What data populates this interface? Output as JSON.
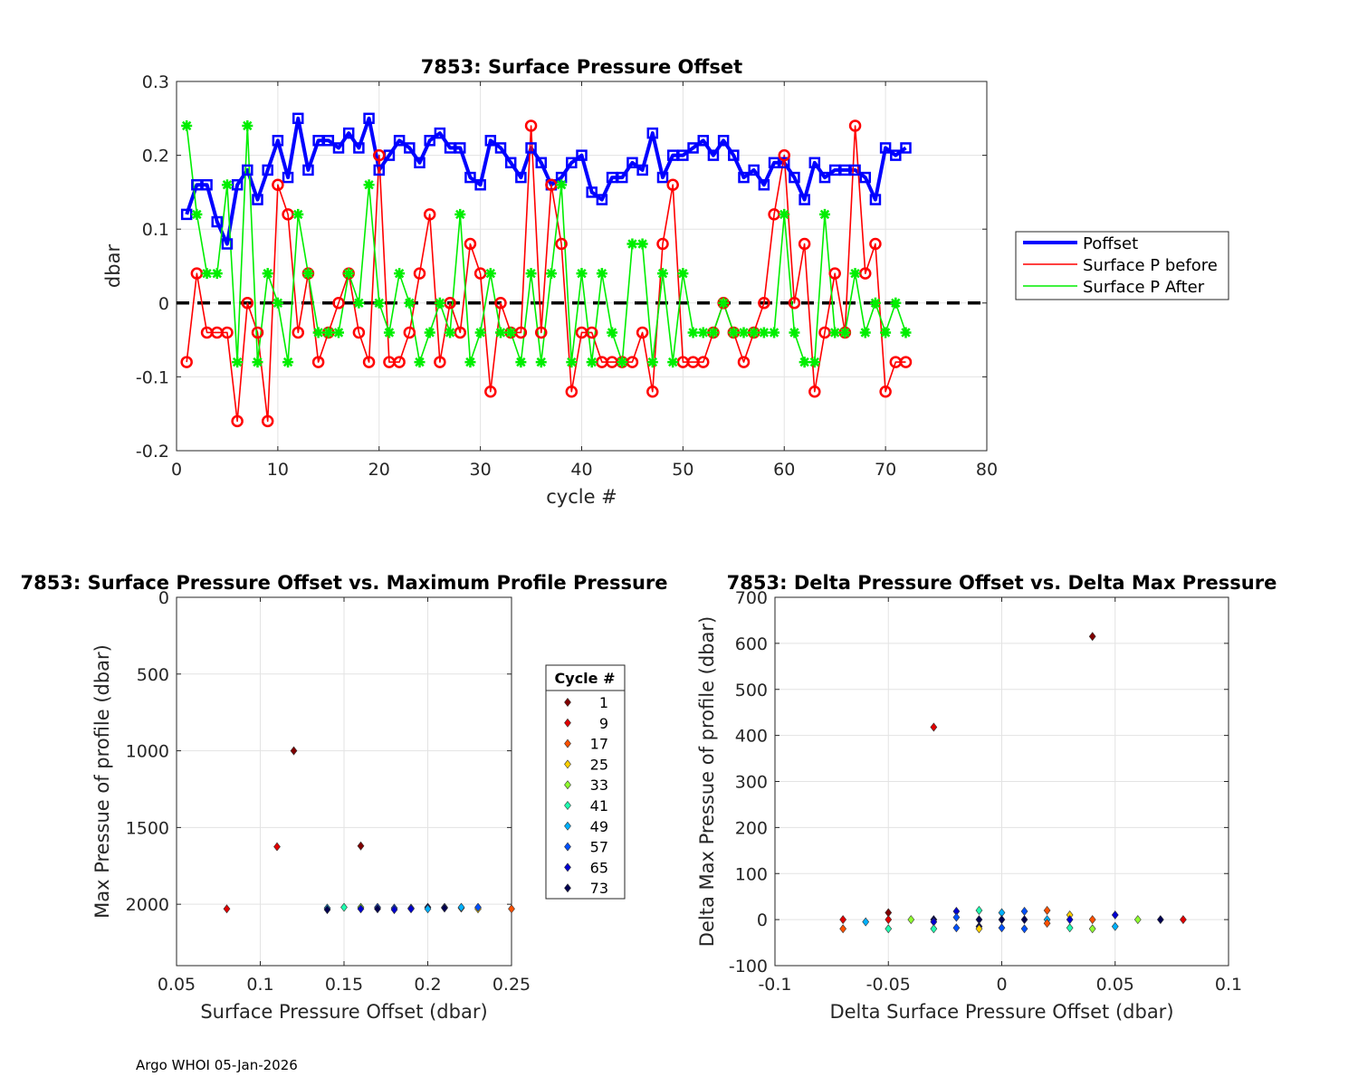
{
  "footer": "Argo WHOI 05-Jan-2026",
  "chart_data": [
    {
      "type": "line",
      "title": "7853: Surface Pressure Offset",
      "xlabel": "cycle #",
      "ylabel": "dbar",
      "xlim": [
        0,
        80
      ],
      "ylim": [
        -0.2,
        0.3
      ],
      "xticks": [
        0,
        10,
        20,
        30,
        40,
        50,
        60,
        70,
        80
      ],
      "yticks": [
        -0.2,
        -0.1,
        0,
        0.1,
        0.2,
        0.3
      ],
      "xtick_labels": [
        "0",
        "10",
        "20",
        "30",
        "40",
        "50",
        "60",
        "70",
        "80"
      ],
      "ytick_labels": [
        "-0.2",
        "-0.1",
        "0",
        "0.1",
        "0.2",
        "0.3"
      ],
      "grid": true,
      "legend_position": "outside-right",
      "reference_line": {
        "y": 0,
        "style": "black dashed"
      },
      "x": [
        1,
        2,
        3,
        4,
        5,
        6,
        7,
        8,
        9,
        10,
        11,
        12,
        13,
        14,
        15,
        16,
        17,
        18,
        19,
        20,
        21,
        22,
        23,
        24,
        25,
        26,
        27,
        28,
        29,
        30,
        31,
        32,
        33,
        34,
        35,
        36,
        37,
        38,
        39,
        40,
        41,
        42,
        43,
        44,
        45,
        46,
        47,
        48,
        49,
        50,
        51,
        52,
        53,
        54,
        55,
        56,
        57,
        58,
        59,
        60,
        61,
        62,
        63,
        64,
        65,
        66,
        67,
        68,
        69,
        70,
        71,
        72
      ],
      "series": [
        {
          "name": "Poffset",
          "color": "#0000ff",
          "values": [
            0.12,
            0.16,
            0.16,
            0.11,
            0.08,
            0.16,
            0.18,
            0.14,
            0.18,
            0.22,
            0.17,
            0.25,
            0.18,
            0.22,
            0.22,
            0.21,
            0.23,
            0.21,
            0.25,
            0.18,
            0.2,
            0.22,
            0.21,
            0.19,
            0.22,
            0.23,
            0.21,
            0.21,
            0.17,
            0.16,
            0.22,
            0.21,
            0.19,
            0.17,
            0.21,
            0.19,
            0.16,
            0.17,
            0.19,
            0.2,
            0.15,
            0.14,
            0.17,
            0.17,
            0.19,
            0.18,
            0.23,
            0.17,
            0.2,
            0.2,
            0.21,
            0.22,
            0.2,
            0.22,
            0.2,
            0.17,
            0.18,
            0.16,
            0.19,
            0.19,
            0.17,
            0.14,
            0.19,
            0.17,
            0.18,
            0.18,
            0.18,
            0.17,
            0.14,
            0.21,
            0.2,
            0.21
          ]
        },
        {
          "name": "Surface P before",
          "color": "#ff0000",
          "values": [
            -0.08,
            0.04,
            -0.04,
            -0.04,
            -0.04,
            -0.16,
            0.0,
            -0.04,
            -0.16,
            0.16,
            0.12,
            -0.04,
            0.04,
            -0.08,
            -0.04,
            0.0,
            0.04,
            -0.04,
            -0.08,
            0.2,
            -0.08,
            -0.08,
            -0.04,
            0.04,
            0.12,
            -0.08,
            0.0,
            -0.04,
            0.08,
            0.04,
            -0.12,
            0.0,
            -0.04,
            -0.04,
            0.24,
            -0.04,
            0.16,
            0.08,
            -0.12,
            -0.04,
            -0.04,
            -0.08,
            -0.08,
            -0.08,
            -0.08,
            -0.04,
            -0.12,
            0.08,
            0.16,
            -0.08,
            -0.08,
            -0.08,
            -0.04,
            0.0,
            -0.04,
            -0.08,
            -0.04,
            0.0,
            0.12,
            0.2,
            0.0,
            0.08,
            -0.12,
            -0.04,
            0.04,
            -0.04,
            0.24,
            0.04,
            0.08,
            -0.12,
            -0.08,
            -0.08
          ]
        },
        {
          "name": "Surface P After",
          "color": "#00ee00",
          "values": [
            0.24,
            0.12,
            0.04,
            0.04,
            0.16,
            -0.08,
            0.24,
            -0.08,
            0.04,
            0.0,
            -0.08,
            0.12,
            0.04,
            -0.04,
            -0.04,
            -0.04,
            0.04,
            0.0,
            0.16,
            0.0,
            -0.04,
            0.04,
            0.0,
            -0.08,
            -0.04,
            0.0,
            -0.04,
            0.12,
            -0.08,
            -0.04,
            0.04,
            -0.04,
            -0.04,
            -0.08,
            0.04,
            -0.08,
            0.04,
            0.16,
            -0.08,
            0.04,
            -0.08,
            0.04,
            -0.04,
            -0.08,
            0.08,
            0.08,
            -0.08,
            0.04,
            -0.08,
            0.04,
            -0.04,
            -0.04,
            -0.04,
            0.0,
            -0.04,
            -0.04,
            -0.04,
            -0.04,
            -0.04,
            0.12,
            -0.04,
            -0.08,
            -0.08,
            0.12,
            -0.04,
            -0.04,
            0.04,
            -0.04,
            0.0,
            -0.04,
            0.0,
            -0.04
          ]
        }
      ]
    },
    {
      "type": "scatter",
      "title": "7853: Surface Pressure Offset vs. Maximum Profile Pressure",
      "xlabel": "Surface Pressure Offset (dbar)",
      "ylabel": "Max Pressue of profile (dbar)",
      "xlim": [
        0.05,
        0.25
      ],
      "ylim": [
        0,
        2400
      ],
      "y_reversed": true,
      "xticks": [
        0.05,
        0.1,
        0.15,
        0.2,
        0.25
      ],
      "yticks": [
        0,
        500,
        1000,
        1500,
        2000
      ],
      "xtick_labels": [
        "0.05",
        "0.1",
        "0.15",
        "0.2",
        "0.25"
      ],
      "ytick_labels": [
        "0",
        "500",
        "1000",
        "1500",
        "2000"
      ],
      "grid": true,
      "legend_title": "Cycle #",
      "legend": [
        {
          "label": "1",
          "color": "#800000"
        },
        {
          "label": "9",
          "color": "#e00000"
        },
        {
          "label": "17",
          "color": "#ff5000"
        },
        {
          "label": "25",
          "color": "#ffd000"
        },
        {
          "label": "33",
          "color": "#90ff30"
        },
        {
          "label": "41",
          "color": "#20ffb0"
        },
        {
          "label": "49",
          "color": "#00b0ff"
        },
        {
          "label": "57",
          "color": "#0050ff"
        },
        {
          "label": "65",
          "color": "#0000d0"
        },
        {
          "label": "73",
          "color": "#000050"
        }
      ],
      "points": [
        {
          "x": 0.12,
          "y": 1000,
          "color": "#800000"
        },
        {
          "x": 0.16,
          "y": 1620,
          "color": "#800000"
        },
        {
          "x": 0.11,
          "y": 1625,
          "color": "#e00000"
        },
        {
          "x": 0.08,
          "y": 2030,
          "color": "#e00000"
        },
        {
          "x": 0.25,
          "y": 2030,
          "color": "#ff5000"
        },
        {
          "x": 0.23,
          "y": 2030,
          "color": "#ffd000"
        },
        {
          "x": 0.22,
          "y": 2025,
          "color": "#ff5000"
        },
        {
          "x": 0.14,
          "y": 2025,
          "color": "#00b0ff"
        },
        {
          "x": 0.14,
          "y": 2035,
          "color": "#000050"
        },
        {
          "x": 0.15,
          "y": 2020,
          "color": "#20ffb0"
        },
        {
          "x": 0.16,
          "y": 2020,
          "color": "#90ff30"
        },
        {
          "x": 0.16,
          "y": 2030,
          "color": "#0000d0"
        },
        {
          "x": 0.17,
          "y": 2020,
          "color": "#0050ff"
        },
        {
          "x": 0.17,
          "y": 2030,
          "color": "#000050"
        },
        {
          "x": 0.18,
          "y": 2025,
          "color": "#0050ff"
        },
        {
          "x": 0.18,
          "y": 2035,
          "color": "#0000d0"
        },
        {
          "x": 0.19,
          "y": 2025,
          "color": "#00b0ff"
        },
        {
          "x": 0.19,
          "y": 2030,
          "color": "#0000d0"
        },
        {
          "x": 0.2,
          "y": 2020,
          "color": "#000050"
        },
        {
          "x": 0.2,
          "y": 2030,
          "color": "#00b0ff"
        },
        {
          "x": 0.21,
          "y": 2020,
          "color": "#0050ff"
        },
        {
          "x": 0.21,
          "y": 2025,
          "color": "#000050"
        },
        {
          "x": 0.22,
          "y": 2020,
          "color": "#00b0ff"
        },
        {
          "x": 0.23,
          "y": 2020,
          "color": "#0050ff"
        }
      ]
    },
    {
      "type": "scatter",
      "title": "7853: Delta Pressure Offset vs. Delta Max Pressure",
      "xlabel": "Delta Surface Pressure Offset (dbar)",
      "ylabel": "Delta Max Pressue of profile (dbar)",
      "xlim": [
        -0.1,
        0.1
      ],
      "ylim": [
        -100,
        700
      ],
      "xticks": [
        -0.1,
        -0.05,
        0,
        0.05,
        0.1
      ],
      "yticks": [
        -100,
        0,
        100,
        200,
        300,
        400,
        500,
        600,
        700
      ],
      "xtick_labels": [
        "-0.1",
        "-0.05",
        "0",
        "0.05",
        "0.1"
      ],
      "ytick_labels": [
        "-100",
        "0",
        "100",
        "200",
        "300",
        "400",
        "500",
        "600",
        "700"
      ],
      "grid": true,
      "points": [
        {
          "x": 0.04,
          "y": 615,
          "color": "#800000"
        },
        {
          "x": -0.03,
          "y": 418,
          "color": "#e00000"
        },
        {
          "x": -0.07,
          "y": 0,
          "color": "#e00000"
        },
        {
          "x": -0.07,
          "y": -20,
          "color": "#ff5000"
        },
        {
          "x": -0.06,
          "y": -5,
          "color": "#00b0ff"
        },
        {
          "x": -0.05,
          "y": 15,
          "color": "#800000"
        },
        {
          "x": -0.05,
          "y": 0,
          "color": "#e00000"
        },
        {
          "x": -0.05,
          "y": -20,
          "color": "#20ffb0"
        },
        {
          "x": -0.04,
          "y": 0,
          "color": "#90ff30"
        },
        {
          "x": -0.03,
          "y": 0,
          "color": "#000050"
        },
        {
          "x": -0.03,
          "y": -5,
          "color": "#0000d0"
        },
        {
          "x": -0.03,
          "y": -20,
          "color": "#20ffb0"
        },
        {
          "x": -0.02,
          "y": 18,
          "color": "#0000d0"
        },
        {
          "x": -0.02,
          "y": 5,
          "color": "#0050ff"
        },
        {
          "x": -0.02,
          "y": -18,
          "color": "#0050ff"
        },
        {
          "x": -0.01,
          "y": 20,
          "color": "#20ffb0"
        },
        {
          "x": -0.01,
          "y": 0,
          "color": "#000050"
        },
        {
          "x": -0.01,
          "y": -15,
          "color": "#000050"
        },
        {
          "x": -0.01,
          "y": -20,
          "color": "#ffd000"
        },
        {
          "x": 0.0,
          "y": 15,
          "color": "#00b0ff"
        },
        {
          "x": 0.0,
          "y": 0,
          "color": "#000050"
        },
        {
          "x": 0.0,
          "y": -18,
          "color": "#0050ff"
        },
        {
          "x": 0.01,
          "y": 18,
          "color": "#0050ff"
        },
        {
          "x": 0.01,
          "y": 0,
          "color": "#000050"
        },
        {
          "x": 0.01,
          "y": -20,
          "color": "#0050ff"
        },
        {
          "x": 0.02,
          "y": 20,
          "color": "#ff5000"
        },
        {
          "x": 0.02,
          "y": 0,
          "color": "#00b0ff"
        },
        {
          "x": 0.02,
          "y": -8,
          "color": "#ff5000"
        },
        {
          "x": 0.03,
          "y": 10,
          "color": "#ffd000"
        },
        {
          "x": 0.03,
          "y": 0,
          "color": "#0000d0"
        },
        {
          "x": 0.03,
          "y": -18,
          "color": "#20ffb0"
        },
        {
          "x": 0.04,
          "y": 0,
          "color": "#ff5000"
        },
        {
          "x": 0.04,
          "y": -20,
          "color": "#90ff30"
        },
        {
          "x": 0.05,
          "y": 10,
          "color": "#0000d0"
        },
        {
          "x": 0.05,
          "y": -15,
          "color": "#00b0ff"
        },
        {
          "x": 0.06,
          "y": 0,
          "color": "#90ff30"
        },
        {
          "x": 0.07,
          "y": 0,
          "color": "#000050"
        },
        {
          "x": 0.08,
          "y": 0,
          "color": "#e00000"
        }
      ]
    }
  ]
}
